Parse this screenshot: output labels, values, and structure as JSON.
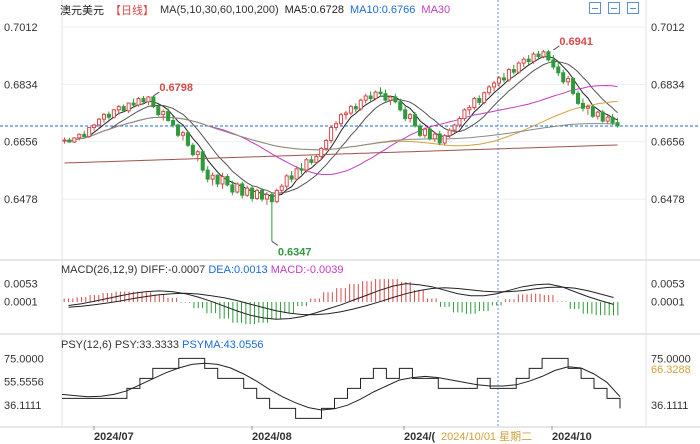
{
  "header": {
    "symbol": "澳元美元",
    "period": "【日线】",
    "ma_legend": "MA(5,10,30,60,100,200)",
    "ma5": "MA5:0.6728",
    "ma10": "MA10:0.6766",
    "ma30": "MA30"
  },
  "macd_header": {
    "title": "MACD(26,12,9)",
    "diff": "DIFF:-0.0007",
    "dea": "DEA:0.0013",
    "macd": "MACD:-0.0039"
  },
  "psy_header": {
    "title": "PSY(12,6)",
    "psy": "PSY:33.3333",
    "psyma": "PSYMA:43.0556"
  },
  "colors": {
    "up": "#d84a4a",
    "down": "#2f9a3c",
    "ma5": "#222222",
    "ma10": "#555555",
    "ma30": "#c33cc3",
    "ma60": "#d4a23c",
    "ma100": "#8a8a8a",
    "ma200": "#a0524a",
    "current": "#1a6bd8",
    "crosshair": "#6a8fcc"
  },
  "chart_data": [
    {
      "type": "candlestick",
      "title": "澳元美元 日线",
      "y_ticks": [
        "0.7012",
        "0.6834",
        "0.6656",
        "0.6478"
      ],
      "ylim": [
        0.632,
        0.704
      ],
      "x_ticks": [
        "2024/07",
        "2024/08",
        "2024/(",
        "2024/10"
      ],
      "crosshair_label": "2024/10/01 星期二",
      "current_price_line": 0.6705,
      "annotations": [
        {
          "text": "0.6798",
          "index": 18,
          "value": 0.6798,
          "color": "#d84a4a"
        },
        {
          "text": "0.6941",
          "index": 99,
          "value": 0.6941,
          "color": "#d84a4a"
        },
        {
          "text": "0.6347",
          "index": 42,
          "value": 0.6347,
          "color": "#2f9a3c"
        }
      ],
      "candles": [
        [
          0.666,
          0.6669,
          0.665,
          0.6661
        ],
        [
          0.6661,
          0.6668,
          0.6654,
          0.6655
        ],
        [
          0.6655,
          0.667,
          0.6652,
          0.6668
        ],
        [
          0.6668,
          0.6682,
          0.666,
          0.6679
        ],
        [
          0.6679,
          0.669,
          0.667,
          0.6672
        ],
        [
          0.6672,
          0.6701,
          0.6668,
          0.67
        ],
        [
          0.67,
          0.6712,
          0.669,
          0.6708
        ],
        [
          0.6708,
          0.673,
          0.67,
          0.6726
        ],
        [
          0.6726,
          0.6745,
          0.6715,
          0.6741
        ],
        [
          0.6741,
          0.675,
          0.6725,
          0.6732
        ],
        [
          0.6732,
          0.6758,
          0.6728,
          0.6755
        ],
        [
          0.6755,
          0.677,
          0.674,
          0.6765
        ],
        [
          0.6765,
          0.6772,
          0.6748,
          0.6752
        ],
        [
          0.6752,
          0.6778,
          0.6745,
          0.6776
        ],
        [
          0.6776,
          0.679,
          0.6762,
          0.677
        ],
        [
          0.677,
          0.6795,
          0.6765,
          0.679
        ],
        [
          0.679,
          0.6798,
          0.6772,
          0.678
        ],
        [
          0.678,
          0.6798,
          0.677,
          0.6795
        ],
        [
          0.6795,
          0.6798,
          0.676,
          0.6765
        ],
        [
          0.6765,
          0.6772,
          0.6735,
          0.674
        ],
        [
          0.674,
          0.6756,
          0.6722,
          0.675
        ],
        [
          0.675,
          0.676,
          0.6718,
          0.6722
        ],
        [
          0.6722,
          0.6735,
          0.67,
          0.6708
        ],
        [
          0.6708,
          0.6712,
          0.667,
          0.6676
        ],
        [
          0.6676,
          0.669,
          0.666,
          0.6684
        ],
        [
          0.6684,
          0.6688,
          0.664,
          0.6645
        ],
        [
          0.6645,
          0.6652,
          0.661,
          0.6616
        ],
        [
          0.6616,
          0.663,
          0.6595,
          0.6625
        ],
        [
          0.6625,
          0.6628,
          0.656,
          0.6568
        ],
        [
          0.6568,
          0.658,
          0.653,
          0.654
        ],
        [
          0.654,
          0.656,
          0.652,
          0.6552
        ],
        [
          0.6552,
          0.6555,
          0.6515,
          0.6525
        ],
        [
          0.6525,
          0.656,
          0.651,
          0.6548
        ],
        [
          0.6548,
          0.6555,
          0.6518,
          0.6522
        ],
        [
          0.6522,
          0.6535,
          0.649,
          0.65
        ],
        [
          0.65,
          0.653,
          0.6495,
          0.6525
        ],
        [
          0.6525,
          0.6532,
          0.648,
          0.649
        ],
        [
          0.649,
          0.652,
          0.6485,
          0.6512
        ],
        [
          0.6512,
          0.652,
          0.647,
          0.648
        ],
        [
          0.648,
          0.651,
          0.6475,
          0.6505
        ],
        [
          0.6505,
          0.6512,
          0.647,
          0.6478
        ],
        [
          0.6478,
          0.65,
          0.646,
          0.6492
        ],
        [
          0.6492,
          0.6498,
          0.6347,
          0.647
        ],
        [
          0.647,
          0.651,
          0.6465,
          0.6505
        ],
        [
          0.6505,
          0.6525,
          0.6495,
          0.6518
        ],
        [
          0.6518,
          0.6555,
          0.651,
          0.655
        ],
        [
          0.655,
          0.6565,
          0.653,
          0.654
        ],
        [
          0.654,
          0.658,
          0.6535,
          0.6572
        ],
        [
          0.6572,
          0.659,
          0.6555,
          0.6568
        ],
        [
          0.6568,
          0.6605,
          0.656,
          0.66
        ],
        [
          0.66,
          0.6612,
          0.6585,
          0.6592
        ],
        [
          0.6592,
          0.6615,
          0.6588,
          0.661
        ],
        [
          0.661,
          0.664,
          0.66,
          0.6635
        ],
        [
          0.6635,
          0.6665,
          0.6628,
          0.666
        ],
        [
          0.666,
          0.6705,
          0.6652,
          0.67
        ],
        [
          0.67,
          0.672,
          0.669,
          0.6712
        ],
        [
          0.6712,
          0.6745,
          0.6705,
          0.674
        ],
        [
          0.674,
          0.6752,
          0.6725,
          0.6745
        ],
        [
          0.6745,
          0.677,
          0.6738,
          0.6765
        ],
        [
          0.6765,
          0.6775,
          0.6748,
          0.6758
        ],
        [
          0.6758,
          0.679,
          0.6752,
          0.6785
        ],
        [
          0.6785,
          0.6805,
          0.6775,
          0.6798
        ],
        [
          0.6798,
          0.6812,
          0.678,
          0.679
        ],
        [
          0.679,
          0.6815,
          0.6785,
          0.681
        ],
        [
          0.681,
          0.6825,
          0.6795,
          0.6805
        ],
        [
          0.6805,
          0.6818,
          0.678,
          0.6785
        ],
        [
          0.6785,
          0.68,
          0.677,
          0.6795
        ],
        [
          0.6795,
          0.6805,
          0.6775,
          0.678
        ],
        [
          0.678,
          0.679,
          0.675,
          0.6755
        ],
        [
          0.6755,
          0.6765,
          0.672,
          0.6728
        ],
        [
          0.6728,
          0.6745,
          0.6715,
          0.674
        ],
        [
          0.674,
          0.6748,
          0.67,
          0.6705
        ],
        [
          0.6705,
          0.6712,
          0.667,
          0.6676
        ],
        [
          0.6676,
          0.67,
          0.6668,
          0.6695
        ],
        [
          0.6695,
          0.6702,
          0.666,
          0.6665
        ],
        [
          0.6665,
          0.6685,
          0.6655,
          0.668
        ],
        [
          0.668,
          0.669,
          0.6645,
          0.6652
        ],
        [
          0.6652,
          0.668,
          0.6645,
          0.6675
        ],
        [
          0.6675,
          0.6698,
          0.6668,
          0.6692
        ],
        [
          0.6692,
          0.6712,
          0.6684,
          0.6708
        ],
        [
          0.6708,
          0.6735,
          0.67,
          0.6728
        ],
        [
          0.6728,
          0.676,
          0.672,
          0.6755
        ],
        [
          0.6755,
          0.677,
          0.674,
          0.6762
        ],
        [
          0.6762,
          0.6795,
          0.6755,
          0.679
        ],
        [
          0.679,
          0.68,
          0.677,
          0.6778
        ],
        [
          0.6778,
          0.6812,
          0.6772,
          0.6808
        ],
        [
          0.6808,
          0.6832,
          0.68,
          0.6826
        ],
        [
          0.6826,
          0.6845,
          0.6812,
          0.6838
        ],
        [
          0.6838,
          0.686,
          0.6825,
          0.6854
        ],
        [
          0.6854,
          0.687,
          0.684,
          0.6848
        ],
        [
          0.6848,
          0.6885,
          0.6842,
          0.688
        ],
        [
          0.688,
          0.6895,
          0.6865,
          0.6872
        ],
        [
          0.6872,
          0.6905,
          0.6866,
          0.69
        ],
        [
          0.69,
          0.6918,
          0.6888,
          0.6912
        ],
        [
          0.6912,
          0.6925,
          0.6895,
          0.6905
        ],
        [
          0.6905,
          0.6935,
          0.6898,
          0.6928
        ],
        [
          0.6928,
          0.6938,
          0.691,
          0.692
        ],
        [
          0.692,
          0.6941,
          0.6915,
          0.6935
        ],
        [
          0.6935,
          0.6941,
          0.6905,
          0.691
        ],
        [
          0.691,
          0.6925,
          0.688,
          0.6888
        ],
        [
          0.6888,
          0.6905,
          0.686,
          0.687
        ],
        [
          0.687,
          0.688,
          0.6835,
          0.6842
        ],
        [
          0.6842,
          0.686,
          0.683,
          0.6852
        ],
        [
          0.6852,
          0.6856,
          0.68,
          0.6806
        ],
        [
          0.6806,
          0.6815,
          0.677,
          0.6775
        ],
        [
          0.6775,
          0.679,
          0.675,
          0.676
        ],
        [
          0.676,
          0.6772,
          0.674,
          0.6765
        ],
        [
          0.6765,
          0.677,
          0.673,
          0.6735
        ],
        [
          0.6735,
          0.6752,
          0.6725,
          0.6748
        ],
        [
          0.6748,
          0.6755,
          0.6715,
          0.672
        ],
        [
          0.672,
          0.674,
          0.6712,
          0.6732
        ],
        [
          0.6732,
          0.6742,
          0.6708,
          0.6715
        ],
        [
          0.6715,
          0.673,
          0.67,
          0.6705
        ]
      ]
    },
    {
      "type": "macd",
      "y_ticks": [
        "0.0053",
        "0.0001"
      ],
      "ylim": [
        -0.0075,
        0.0075
      ],
      "diff": [
        -0.001,
        -0.0005,
        0.0002,
        0.001,
        0.0018,
        0.0025,
        0.003,
        0.0032,
        0.003,
        0.0024,
        0.0014,
        0.0002,
        -0.0012,
        -0.0026,
        -0.0038,
        -0.0046,
        -0.005,
        -0.0048,
        -0.0042,
        -0.0032,
        -0.002,
        -0.0008,
        0.0006,
        0.002,
        0.0034,
        0.0046,
        0.0053,
        0.005,
        0.0044,
        0.0034,
        0.0024,
        0.0018,
        0.0018,
        0.0024,
        0.0034,
        0.0044,
        0.005,
        0.0052,
        0.0044,
        0.003,
        0.0016,
        0.0004,
        -0.0007
      ],
      "dea": [
        -0.0015,
        -0.0012,
        -0.0008,
        -0.0003,
        0.0003,
        0.001,
        0.0016,
        0.0021,
        0.0024,
        0.0025,
        0.0023,
        0.0018,
        0.0012,
        0.0004,
        -0.0006,
        -0.0016,
        -0.0025,
        -0.0032,
        -0.0036,
        -0.0037,
        -0.0034,
        -0.0028,
        -0.002,
        -0.001,
        0.0001,
        0.0013,
        0.0024,
        0.0033,
        0.0039,
        0.0041,
        0.0039,
        0.0035,
        0.0031,
        0.0029,
        0.003,
        0.0033,
        0.0038,
        0.0042,
        0.0043,
        0.004,
        0.0033,
        0.0023,
        0.0013
      ],
      "hist": [
        0.001,
        0.0014,
        0.002,
        0.0026,
        0.003,
        0.003,
        0.0028,
        0.0022,
        0.0012,
        -0.0002,
        -0.0018,
        -0.0032,
        -0.0048,
        -0.006,
        -0.0064,
        -0.006,
        -0.005,
        -0.0032,
        -0.0012,
        0.001,
        0.0028,
        0.004,
        0.0052,
        0.006,
        0.0066,
        0.0066,
        0.0058,
        0.0034,
        0.001,
        -0.0014,
        -0.003,
        -0.0034,
        -0.0026,
        -0.001,
        0.0008,
        0.0022,
        0.0024,
        0.002,
        0.0002,
        -0.002,
        -0.0034,
        -0.0038,
        -0.0039
      ]
    },
    {
      "type": "line",
      "title": "PSY",
      "y_ticks": [
        "75.0000",
        "55.5556",
        "36.1111"
      ],
      "right_label": "66.3288",
      "ylim": [
        22,
        82
      ],
      "psy": [
        41.67,
        41.67,
        41.67,
        41.67,
        41.67,
        50,
        58.33,
        66.67,
        66.67,
        75,
        75,
        66.67,
        58.33,
        58.33,
        50,
        41.67,
        33.33,
        33.33,
        25,
        25,
        33.33,
        41.67,
        50,
        58.33,
        66.67,
        58.33,
        66.67,
        58.33,
        58.33,
        50,
        50,
        50,
        58.33,
        50,
        50,
        58.33,
        66.67,
        75,
        75,
        66.67,
        58.33,
        50,
        41.67,
        33.33
      ],
      "psyma": [
        45,
        44,
        43,
        43.5,
        45,
        48,
        53,
        58,
        63,
        67,
        70,
        71,
        70,
        67,
        62,
        56,
        49,
        43,
        38,
        34,
        32,
        33,
        36,
        41,
        47,
        52,
        57,
        59,
        60,
        59,
        57,
        55,
        53,
        52,
        52,
        53,
        56,
        60,
        65,
        68,
        67,
        62,
        55,
        43.06
      ]
    }
  ]
}
